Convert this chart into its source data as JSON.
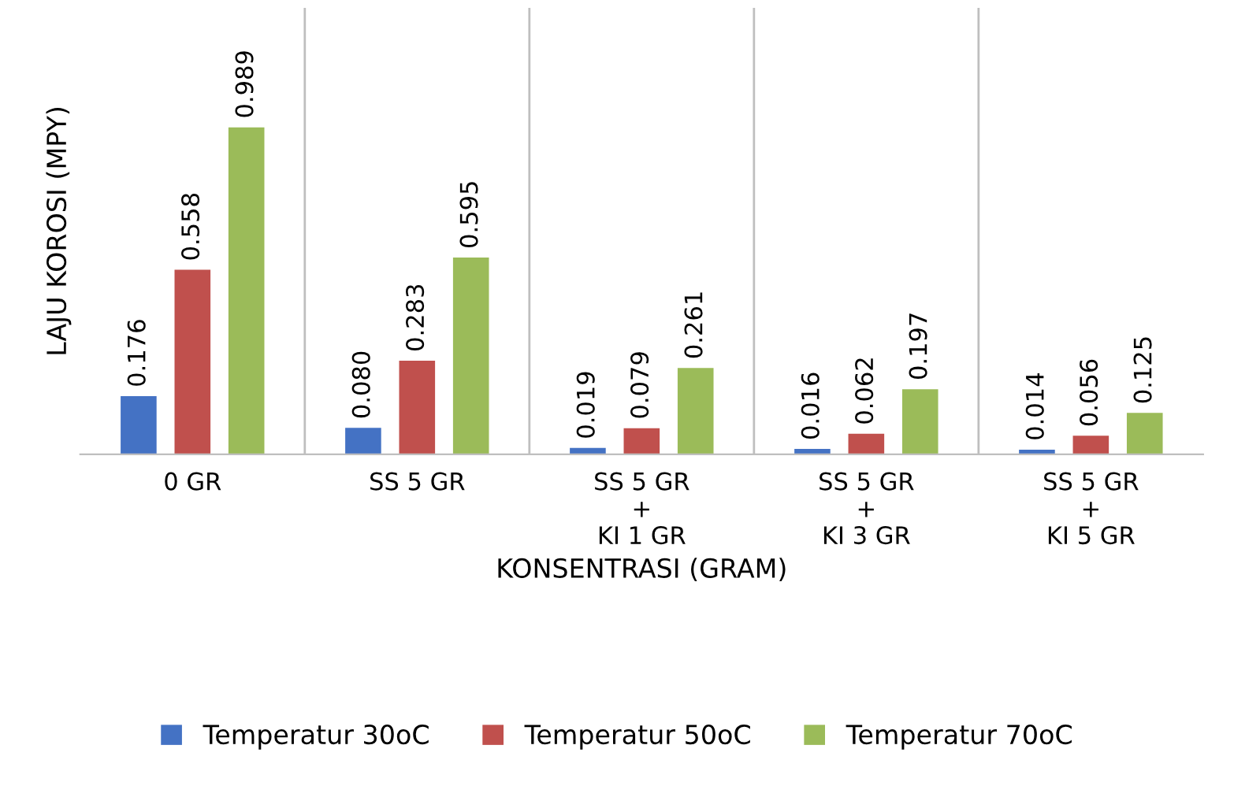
{
  "chart_data": {
    "type": "bar",
    "categories": [
      "0 GR",
      "SS 5 GR",
      "SS 5 GR\n+\nKI 1 GR",
      "SS 5 GR\n+\nKI 3 GR",
      "SS 5 GR\n+\nKI 5 GR"
    ],
    "series": [
      {
        "name": "Temperatur 30oC",
        "color": "#4472c4",
        "values": [
          0.176,
          0.08,
          0.019,
          0.016,
          0.014
        ],
        "value_labels": [
          "0.176",
          "0.080",
          "0.019",
          "0.016",
          "0.014"
        ]
      },
      {
        "name": "Temperatur 50oC",
        "color": "#c0504d",
        "values": [
          0.558,
          0.283,
          0.079,
          0.062,
          0.056
        ],
        "value_labels": [
          "0.558",
          "0.283",
          "0.079",
          "0.062",
          "0.056"
        ]
      },
      {
        "name": "Temperatur 70oC",
        "color": "#9bbb59",
        "values": [
          0.989,
          0.595,
          0.261,
          0.197,
          0.125
        ],
        "value_labels": [
          "0.989",
          "0.595",
          "0.261",
          "0.197",
          "0.125"
        ]
      }
    ],
    "xlabel": "KONSENTRASI (GRAM)",
    "ylabel": "LAJU KOROSI (MPY)",
    "ylim": [
      0,
      1.35
    ],
    "tick_labels": "x",
    "legend": "bottom",
    "grid": "x"
  }
}
